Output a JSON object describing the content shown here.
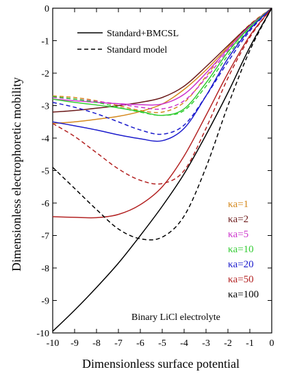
{
  "chart_data": {
    "type": "line",
    "xlabel": "Dimensionless surface potential",
    "ylabel": "Dimensionless electrophoretic mobility",
    "xlim": [
      -10,
      0
    ],
    "ylim": [
      -10,
      0
    ],
    "xticks": [
      "-10",
      "-9",
      "-8",
      "-7",
      "-6",
      "-5",
      "-4",
      "-3",
      "-2",
      "-1",
      "0"
    ],
    "yticks": [
      "0",
      "-1",
      "-2",
      "-3",
      "-4",
      "-5",
      "-6",
      "-7",
      "-8",
      "-9",
      "-10"
    ],
    "grid": false,
    "legend": {
      "placement": "top",
      "entries": [
        {
          "label": "Standard+BMCSL",
          "style": "solid"
        },
        {
          "label": "Standard model",
          "style": "dashed"
        }
      ]
    },
    "annotation": "Binary LiCl electrolyte",
    "series": [
      {
        "name": "κa=1",
        "color": "#d4881c",
        "solid": [
          [
            -10,
            -3.55
          ],
          [
            -9,
            -3.5
          ],
          [
            -8,
            -3.42
          ],
          [
            -7,
            -3.33
          ],
          [
            -6,
            -3.18
          ],
          [
            -5,
            -2.95
          ],
          [
            -4,
            -2.5
          ],
          [
            -3,
            -1.9
          ],
          [
            -2,
            -1.2
          ],
          [
            -1,
            -0.55
          ],
          [
            0,
            0
          ]
        ],
        "dashed": [
          [
            -10,
            -2.7
          ],
          [
            -9,
            -2.75
          ],
          [
            -8,
            -2.85
          ],
          [
            -7,
            -3.0
          ],
          [
            -6,
            -3.15
          ],
          [
            -5,
            -3.2
          ],
          [
            -4,
            -2.9
          ],
          [
            -3,
            -2.1
          ],
          [
            -2,
            -1.2
          ],
          [
            -1,
            -0.5
          ],
          [
            0,
            0
          ]
        ]
      },
      {
        "name": "κa=2",
        "color": "#6b1a1a",
        "solid": [
          [
            -10,
            -3.2
          ],
          [
            -9,
            -3.15
          ],
          [
            -8,
            -3.08
          ],
          [
            -7,
            -3.0
          ],
          [
            -6,
            -2.9
          ],
          [
            -5,
            -2.75
          ],
          [
            -4,
            -2.4
          ],
          [
            -3,
            -1.8
          ],
          [
            -2,
            -1.15
          ],
          [
            -1,
            -0.52
          ],
          [
            0,
            0
          ]
        ],
        "dashed": null
      },
      {
        "name": "κa=5",
        "color": "#cc33cc",
        "solid": [
          [
            -10,
            -2.8
          ],
          [
            -9,
            -2.85
          ],
          [
            -8,
            -2.9
          ],
          [
            -7,
            -2.94
          ],
          [
            -6,
            -2.97
          ],
          [
            -5,
            -2.95
          ],
          [
            -4,
            -2.65
          ],
          [
            -3,
            -2.0
          ],
          [
            -2,
            -1.25
          ],
          [
            -1,
            -0.55
          ],
          [
            0,
            0
          ]
        ],
        "dashed": [
          [
            -10,
            -2.75
          ],
          [
            -9,
            -2.8
          ],
          [
            -8,
            -2.87
          ],
          [
            -7,
            -2.95
          ],
          [
            -6,
            -3.05
          ],
          [
            -5,
            -3.1
          ],
          [
            -4,
            -2.85
          ],
          [
            -3,
            -2.15
          ],
          [
            -2,
            -1.3
          ],
          [
            -1,
            -0.55
          ],
          [
            0,
            0
          ]
        ]
      },
      {
        "name": "κa=10",
        "color": "#33cc33",
        "solid": [
          [
            -10,
            -2.8
          ],
          [
            -9,
            -2.9
          ],
          [
            -8,
            -2.98
          ],
          [
            -7,
            -3.07
          ],
          [
            -6,
            -3.18
          ],
          [
            -5,
            -3.3
          ],
          [
            -4,
            -3.1
          ],
          [
            -3,
            -2.3
          ],
          [
            -2,
            -1.35
          ],
          [
            -1,
            -0.58
          ],
          [
            0,
            0
          ]
        ],
        "dashed": [
          [
            -10,
            -2.72
          ],
          [
            -9,
            -2.8
          ],
          [
            -8,
            -2.9
          ],
          [
            -7,
            -3.05
          ],
          [
            -6,
            -3.2
          ],
          [
            -5,
            -3.3
          ],
          [
            -4,
            -3.15
          ],
          [
            -3,
            -2.4
          ],
          [
            -2,
            -1.45
          ],
          [
            -1,
            -0.62
          ],
          [
            0,
            0
          ]
        ]
      },
      {
        "name": "κa=20",
        "color": "#1a1acc",
        "solid": [
          [
            -10,
            -3.5
          ],
          [
            -9,
            -3.62
          ],
          [
            -8,
            -3.75
          ],
          [
            -7,
            -3.9
          ],
          [
            -6,
            -4.02
          ],
          [
            -5,
            -4.08
          ],
          [
            -4,
            -3.7
          ],
          [
            -3,
            -2.7
          ],
          [
            -2,
            -1.55
          ],
          [
            -1,
            -0.65
          ],
          [
            0,
            0
          ]
        ],
        "dashed": [
          [
            -10,
            -2.9
          ],
          [
            -9,
            -3.05
          ],
          [
            -8,
            -3.25
          ],
          [
            -7,
            -3.5
          ],
          [
            -6,
            -3.75
          ],
          [
            -5,
            -3.88
          ],
          [
            -4,
            -3.6
          ],
          [
            -3,
            -2.7
          ],
          [
            -2,
            -1.65
          ],
          [
            -1,
            -0.7
          ],
          [
            0,
            0
          ]
        ]
      },
      {
        "name": "κa=50",
        "color": "#b32222",
        "solid": [
          [
            -10,
            -6.42
          ],
          [
            -9,
            -6.44
          ],
          [
            -8,
            -6.45
          ],
          [
            -7,
            -6.35
          ],
          [
            -6,
            -6.05
          ],
          [
            -5,
            -5.5
          ],
          [
            -4,
            -4.55
          ],
          [
            -3,
            -3.3
          ],
          [
            -2,
            -2.0
          ],
          [
            -1,
            -0.85
          ],
          [
            0,
            0
          ]
        ],
        "dashed": [
          [
            -10,
            -3.55
          ],
          [
            -9,
            -3.95
          ],
          [
            -8,
            -4.45
          ],
          [
            -7,
            -4.95
          ],
          [
            -6,
            -5.3
          ],
          [
            -5,
            -5.4
          ],
          [
            -4,
            -5.0
          ],
          [
            -3,
            -3.7
          ],
          [
            -2,
            -2.15
          ],
          [
            -1,
            -0.9
          ],
          [
            0,
            0
          ]
        ]
      },
      {
        "name": "κa=100",
        "color": "#000000",
        "solid": [
          [
            -10,
            -9.95
          ],
          [
            -9,
            -9.3
          ],
          [
            -8,
            -8.6
          ],
          [
            -7,
            -7.85
          ],
          [
            -6,
            -7.0
          ],
          [
            -5,
            -6.1
          ],
          [
            -4,
            -5.1
          ],
          [
            -3,
            -3.9
          ],
          [
            -2,
            -2.6
          ],
          [
            -1,
            -1.2
          ],
          [
            0,
            0
          ]
        ],
        "dashed": [
          [
            -10,
            -4.9
          ],
          [
            -9,
            -5.55
          ],
          [
            -8,
            -6.2
          ],
          [
            -7,
            -6.8
          ],
          [
            -6,
            -7.1
          ],
          [
            -5,
            -7.05
          ],
          [
            -4,
            -6.4
          ],
          [
            -3,
            -4.9
          ],
          [
            -2,
            -3.0
          ],
          [
            -1,
            -1.3
          ],
          [
            0,
            0
          ]
        ]
      }
    ]
  }
}
